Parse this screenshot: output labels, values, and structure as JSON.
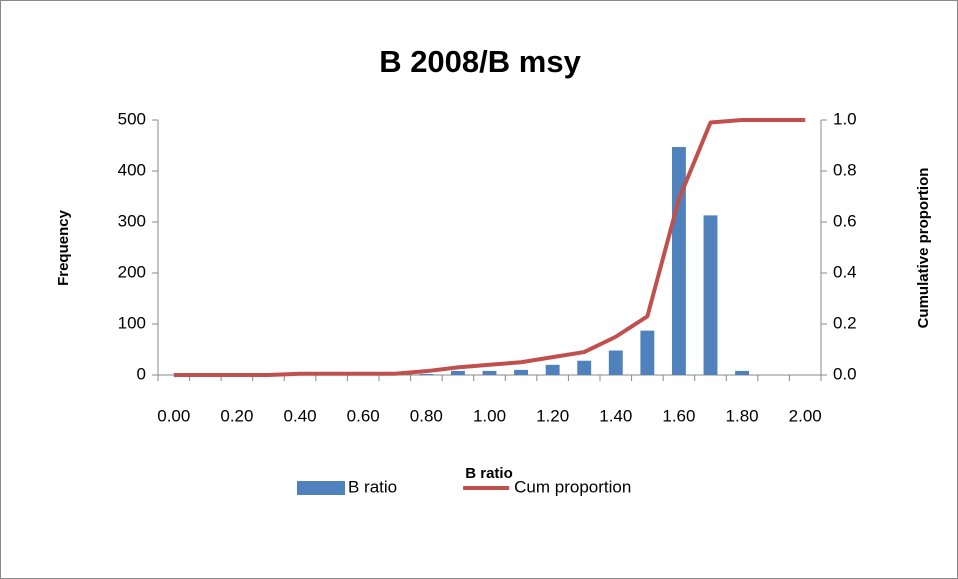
{
  "chart_data": {
    "type": "bar",
    "title": "B 2008/B msy",
    "x_label": "B ratio",
    "y_label": "Frequency",
    "y2_label": "Cumulative proportion",
    "categories": [
      "0.00",
      null,
      "0.20",
      null,
      "0.40",
      null,
      "0.60",
      null,
      "0.80",
      null,
      "1.00",
      null,
      "1.20",
      null,
      "1.40",
      null,
      "1.60",
      null,
      "1.80",
      null,
      "2.00"
    ],
    "series": [
      {
        "name": "B ratio",
        "type": "bar",
        "color": "#4f81bd",
        "values": [
          0,
          0,
          0,
          0,
          0,
          0,
          0,
          0,
          2,
          8,
          8,
          10,
          20,
          28,
          48,
          87,
          447,
          313,
          8,
          0,
          0
        ]
      },
      {
        "name": "Cum proportion",
        "type": "line",
        "axis": "y2",
        "color": "#c0504d",
        "values": [
          0,
          0,
          0,
          0,
          0.005,
          0.005,
          0.005,
          0.005,
          0.015,
          0.03,
          0.04,
          0.05,
          0.07,
          0.09,
          0.15,
          0.23,
          0.69,
          0.99,
          1.0,
          1.0,
          1.0
        ]
      }
    ],
    "ylim": [
      0,
      500
    ],
    "yticks": [
      0,
      100,
      200,
      300,
      400,
      500
    ],
    "y2lim": [
      0,
      1
    ],
    "y2ticks": [
      {
        "value": 0,
        "label": "0.0"
      },
      0.2,
      0.4,
      0.6,
      0.8,
      {
        "value": 1,
        "label": "1.0"
      }
    ],
    "legend": "bottom"
  }
}
